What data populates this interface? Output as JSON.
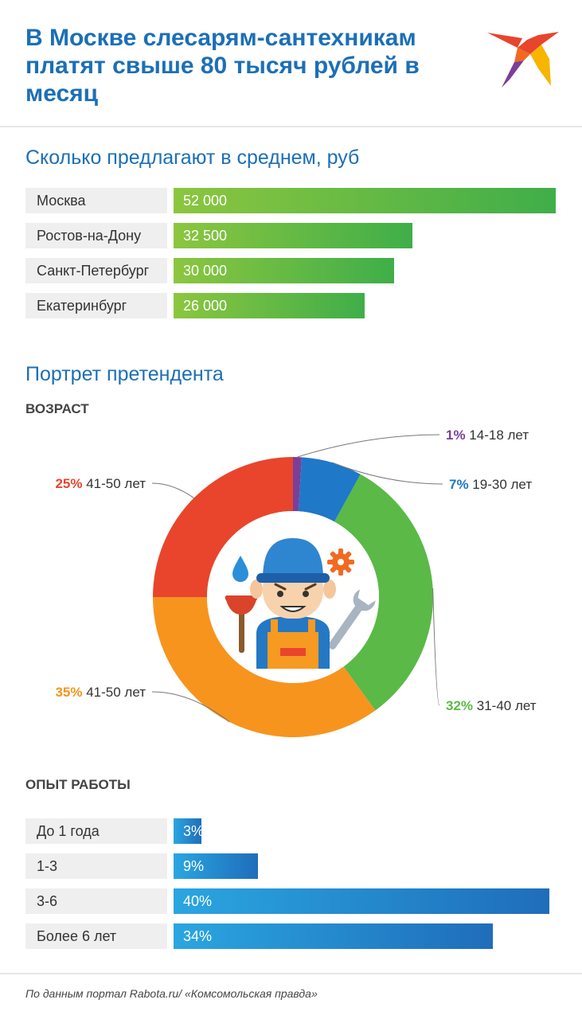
{
  "header": {
    "title": "В Москве слесарям-сантехникам платят свыше 80 тысяч рублей в месяц",
    "logo_icon": "swallow-bird-logo"
  },
  "salary": {
    "title": "Сколько предлагают в среднем, руб"
  },
  "portrait": {
    "title": "Портрет претендента",
    "age_title": "ВОЗРАСТ",
    "experience_title": "ОПЫТ РАБОТЫ",
    "center_icon": "plumber-icon"
  },
  "chart_data": [
    {
      "type": "bar",
      "orientation": "horizontal",
      "title": "Сколько предлагают в среднем, руб",
      "categories": [
        "Москва",
        "Ростов-на-Дону",
        "Санкт-Петербург",
        "Екатеринбург"
      ],
      "values": [
        52000,
        32500,
        30000,
        26000
      ],
      "value_labels": [
        "52 000",
        "32 500",
        "30 000",
        "26 000"
      ],
      "color": "#6dbb45"
    },
    {
      "type": "pie",
      "donut": true,
      "title": "ВОЗРАСТ",
      "slices": [
        {
          "pct": "1%",
          "label": "14-18 лет",
          "value": 1,
          "color": "#7b3f98"
        },
        {
          "pct": "7%",
          "label": "19-30 лет",
          "value": 7,
          "color": "#1f78c8"
        },
        {
          "pct": "32%",
          "label": "31-40 лет",
          "value": 32,
          "color": "#5bb947"
        },
        {
          "pct": "35%",
          "label": "41-50 лет",
          "value": 35,
          "color": "#f7941d"
        },
        {
          "pct": "25%",
          "label": "41-50 лет",
          "value": 25,
          "color": "#e8452c"
        }
      ]
    },
    {
      "type": "bar",
      "orientation": "horizontal",
      "title": "ОПЫТ РАБОТЫ",
      "categories": [
        "До 1 года",
        "1-3",
        "3-6",
        "Более 6 лет"
      ],
      "values": [
        3,
        9,
        40,
        34
      ],
      "value_labels": [
        "3%",
        "9%",
        "40%",
        "34%"
      ],
      "color": "#1f8ad4"
    }
  ],
  "footer": {
    "source": "По данным портал Rabota.ru/ «Комсомольская правда»"
  }
}
